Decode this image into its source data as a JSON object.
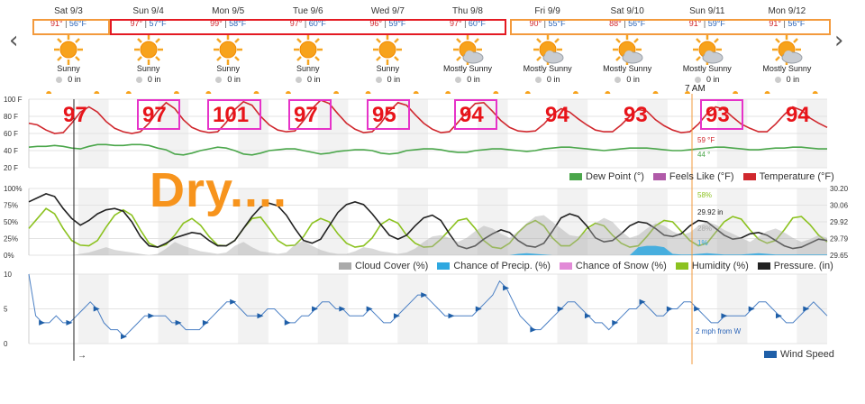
{
  "nav": {
    "prev_icon": "‹",
    "next_icon": "›"
  },
  "days": [
    {
      "date": "Sat 9/3",
      "hi": "91°",
      "lo": "56°F",
      "cond": "Sunny",
      "precip": "0 in",
      "icon": "sun-icon"
    },
    {
      "date": "Sun 9/4",
      "hi": "97°",
      "lo": "57°F",
      "cond": "Sunny",
      "precip": "0 in",
      "icon": "sun-icon"
    },
    {
      "date": "Mon 9/5",
      "hi": "99°",
      "lo": "58°F",
      "cond": "Sunny",
      "precip": "0 in",
      "icon": "sun-icon"
    },
    {
      "date": "Tue 9/6",
      "hi": "97°",
      "lo": "60°F",
      "cond": "Sunny",
      "precip": "0 in",
      "icon": "sun-icon"
    },
    {
      "date": "Wed 9/7",
      "hi": "96°",
      "lo": "59°F",
      "cond": "Sunny",
      "precip": "0 in",
      "icon": "sun-icon"
    },
    {
      "date": "Thu 9/8",
      "hi": "97°",
      "lo": "60°F",
      "cond": "Mostly Sunny",
      "precip": "0 in",
      "icon": "mostly-sunny-icon"
    },
    {
      "date": "Fri 9/9",
      "hi": "90°",
      "lo": "55°F",
      "cond": "Mostly Sunny",
      "precip": "0 in",
      "icon": "mostly-sunny-icon"
    },
    {
      "date": "Sat 9/10",
      "hi": "88°",
      "lo": "56°F",
      "cond": "Mostly Sunny",
      "precip": "0 in",
      "icon": "mostly-sunny-icon"
    },
    {
      "date": "Sun 9/11",
      "hi": "91°",
      "lo": "59°F",
      "cond": "Mostly Sunny",
      "precip": "0 in",
      "icon": "mostly-sunny-icon"
    },
    {
      "date": "Mon 9/12",
      "hi": "91°",
      "lo": "56°F",
      "cond": "Mostly Sunny",
      "precip": "0 in",
      "icon": "mostly-sunny-icon"
    }
  ],
  "annotations": {
    "big_temps": [
      "97",
      "97",
      "101",
      "97",
      "95",
      "94",
      "94",
      "93",
      "93",
      "94"
    ],
    "dry_text": "Dry....",
    "cursor_time": "7 AM",
    "colors": {
      "red_box": "#e41a22",
      "orange_box": "#f39a3c",
      "pink_box": "#e633c8",
      "big_temp": "#e8141a",
      "dry": "#f7941d"
    }
  },
  "chart_data": [
    {
      "type": "line",
      "x_unit": "hours",
      "ylim": [
        20,
        100
      ],
      "y_ticks": [
        "100 F",
        "80 F",
        "60 F",
        "40 F",
        "20 F"
      ],
      "legend": [
        {
          "name": "Dew Point (°)",
          "color": "#4aa64a"
        },
        {
          "name": "Feels Like (°F)",
          "color": "#b05aa8"
        },
        {
          "name": "Temperature (°F)",
          "color": "#d0282e"
        }
      ],
      "series": [
        {
          "name": "Temperature (°F)",
          "color": "#d0282e",
          "values": [
            72,
            70,
            64,
            60,
            61,
            72,
            85,
            91,
            85,
            74,
            66,
            62,
            60,
            62,
            72,
            86,
            96,
            89,
            76,
            67,
            63,
            61,
            62,
            73,
            88,
            97,
            93,
            80,
            70,
            64,
            62,
            63,
            75,
            89,
            99,
            95,
            83,
            72,
            65,
            61,
            62,
            72,
            86,
            96,
            93,
            82,
            72,
            65,
            61,
            62,
            73,
            85,
            95,
            96,
            86,
            75,
            67,
            63,
            62,
            63,
            71,
            82,
            89,
            85,
            77,
            70,
            64,
            62,
            62,
            70,
            80,
            88,
            86,
            76,
            69,
            64,
            61,
            62,
            71,
            83,
            91,
            88,
            79,
            71,
            66,
            62,
            62,
            71,
            82,
            91,
            87,
            78,
            72,
            67
          ]
        },
        {
          "name": "Dew Point (°)",
          "color": "#4aa64a",
          "values": [
            44,
            45,
            45,
            46,
            45,
            43,
            42,
            45,
            47,
            47,
            46,
            46,
            47,
            47,
            46,
            43,
            41,
            36,
            35,
            37,
            40,
            42,
            44,
            43,
            40,
            36,
            35,
            37,
            40,
            41,
            42,
            42,
            40,
            38,
            36,
            37,
            39,
            40,
            41,
            41,
            40,
            37,
            36,
            37,
            40,
            41,
            42,
            42,
            41,
            39,
            38,
            38,
            40,
            41,
            42,
            42,
            41,
            40,
            39,
            40,
            42,
            43,
            44,
            44,
            43,
            42,
            41,
            40,
            41,
            42,
            43,
            43,
            43,
            42,
            41,
            40,
            40,
            41,
            42,
            43,
            44,
            44,
            43,
            42,
            41,
            41,
            42,
            43,
            43,
            44,
            44,
            43,
            42,
            42
          ]
        }
      ],
      "readouts": [
        {
          "text": "59 °F",
          "color": "#d0282e"
        },
        {
          "text": "44 °",
          "color": "#4aa64a"
        }
      ]
    },
    {
      "type": "line",
      "ylim": [
        0,
        100
      ],
      "y_ticks": [
        "100%",
        "75%",
        "50%",
        "25%",
        "0%"
      ],
      "y2_ticks": [
        "30.20",
        "30.06",
        "29.92",
        "29.79",
        "29.65"
      ],
      "legend": [
        {
          "name": "Cloud Cover (%)",
          "color": "#aaaaaa"
        },
        {
          "name": "Chance of Precip. (%)",
          "color": "#2fa8e0"
        },
        {
          "name": "Chance of Snow (%)",
          "color": "#e28ad7"
        },
        {
          "name": "Humidity (%)",
          "color": "#8cc220"
        },
        {
          "name": "Pressure. (in)",
          "color": "#222222"
        }
      ],
      "series": [
        {
          "name": "Humidity (%)",
          "color": "#8cc220",
          "values": [
            40,
            55,
            70,
            62,
            40,
            22,
            15,
            14,
            22,
            42,
            60,
            68,
            60,
            38,
            18,
            12,
            16,
            30,
            48,
            55,
            45,
            28,
            15,
            14,
            22,
            40,
            55,
            57,
            40,
            22,
            14,
            15,
            28,
            48,
            55,
            50,
            32,
            18,
            12,
            14,
            26,
            46,
            54,
            48,
            30,
            18,
            12,
            13,
            24,
            38,
            52,
            55,
            40,
            22,
            12,
            10,
            18,
            34,
            46,
            52,
            44,
            26,
            14,
            14,
            24,
            40,
            48,
            44,
            30,
            18,
            12,
            14,
            28,
            44,
            52,
            50,
            36,
            22,
            14,
            18,
            34,
            50,
            58,
            54,
            38,
            24,
            18,
            22,
            38,
            56,
            58,
            46,
            30,
            20
          ]
        },
        {
          "name": "Pressure. (in)",
          "color": "#222222",
          "values": [
            80,
            86,
            92,
            88,
            70,
            55,
            45,
            52,
            62,
            68,
            70,
            66,
            50,
            28,
            14,
            12,
            18,
            26,
            30,
            34,
            32,
            22,
            14,
            14,
            22,
            40,
            58,
            72,
            78,
            74,
            60,
            40,
            22,
            18,
            24,
            44,
            64,
            76,
            80,
            76,
            62,
            46,
            30,
            24,
            30,
            44,
            56,
            60,
            52,
            32,
            14,
            10,
            14,
            24,
            32,
            38,
            34,
            22,
            14,
            12,
            18,
            36,
            56,
            62,
            58,
            44,
            26,
            20,
            22,
            32,
            44,
            50,
            48,
            40,
            30,
            28,
            32,
            44,
            52,
            50,
            40,
            30,
            24,
            26,
            32,
            34,
            30,
            22,
            14,
            10,
            12,
            18,
            24,
            22
          ]
        },
        {
          "name": "Cloud Cover (%)",
          "color": "#aaaaaa",
          "values": [
            0,
            0,
            0,
            0,
            0,
            0,
            2,
            4,
            8,
            12,
            8,
            6,
            4,
            2,
            0,
            2,
            10,
            20,
            14,
            10,
            6,
            4,
            2,
            4,
            14,
            20,
            12,
            6,
            4,
            2,
            4,
            16,
            22,
            14,
            8,
            4,
            2,
            2,
            6,
            12,
            10,
            6,
            4,
            2,
            4,
            10,
            20,
            28,
            30,
            26,
            20,
            26,
            36,
            44,
            40,
            32,
            26,
            36,
            48,
            58,
            60,
            50,
            40,
            30,
            28,
            36,
            48,
            56,
            50,
            36,
            26,
            30,
            40,
            48,
            44,
            36,
            30,
            34,
            44,
            50,
            46,
            38,
            32,
            26,
            20,
            28,
            36,
            40,
            34,
            26,
            20,
            24,
            30,
            26
          ]
        },
        {
          "name": "Chance of Precip. (%)",
          "color": "#2fa8e0",
          "values": [
            0,
            0,
            0,
            0,
            0,
            0,
            0,
            0,
            0,
            0,
            0,
            0,
            0,
            0,
            0,
            0,
            0,
            0,
            0,
            0,
            0,
            0,
            0,
            0,
            0,
            0,
            0,
            0,
            0,
            0,
            0,
            0,
            0,
            0,
            0,
            0,
            0,
            0,
            0,
            0,
            0,
            0,
            0,
            0,
            0,
            0,
            0,
            0,
            0,
            0,
            0,
            0,
            0,
            0,
            0,
            0,
            0,
            2,
            3,
            2,
            1,
            0,
            0,
            0,
            0,
            0,
            0,
            0,
            0,
            0,
            0,
            12,
            14,
            14,
            12,
            2,
            1,
            1,
            2,
            3,
            2,
            1,
            1,
            1,
            2,
            3,
            2,
            1,
            1,
            1,
            1,
            1,
            1,
            1
          ]
        }
      ],
      "readouts": [
        {
          "text": "58%",
          "color": "#8cc220"
        },
        {
          "text": "29.92 in",
          "color": "#222222"
        },
        {
          "text": "28%",
          "color": "#aaaaaa"
        },
        {
          "text": "1%",
          "color": "#2fa8e0"
        }
      ]
    },
    {
      "type": "line",
      "ylim": [
        0,
        10
      ],
      "y_ticks": [
        "10",
        "5",
        "0"
      ],
      "legend": [
        {
          "name": "Wind Speed",
          "color": "#1f5fa8"
        }
      ],
      "series": [
        {
          "name": "Wind Speed",
          "color": "#4a7fc4",
          "values": [
            10,
            4,
            3,
            3,
            4,
            3,
            3,
            4,
            5,
            6,
            5,
            3,
            2,
            2,
            1,
            2,
            3,
            4,
            4,
            4,
            4,
            3,
            3,
            2,
            2,
            2,
            3,
            4,
            5,
            6,
            6,
            5,
            4,
            4,
            4,
            5,
            5,
            4,
            3,
            3,
            4,
            4,
            5,
            6,
            6,
            5,
            5,
            4,
            4,
            4,
            5,
            4,
            3,
            3,
            4,
            5,
            6,
            7,
            7,
            6,
            5,
            4,
            4,
            4,
            4,
            4,
            5,
            6,
            7,
            9,
            8,
            6,
            4,
            3,
            2,
            2,
            3,
            4,
            5,
            6,
            6,
            5,
            4,
            3,
            3,
            2,
            3,
            4,
            5,
            5,
            6,
            5,
            4,
            4,
            5,
            5,
            6,
            6,
            5,
            4,
            3,
            3,
            4,
            4,
            4,
            4,
            5,
            6,
            6,
            5,
            4,
            3,
            3,
            4,
            5,
            6,
            5,
            4
          ]
        }
      ],
      "readout": "2 mph from W"
    }
  ]
}
